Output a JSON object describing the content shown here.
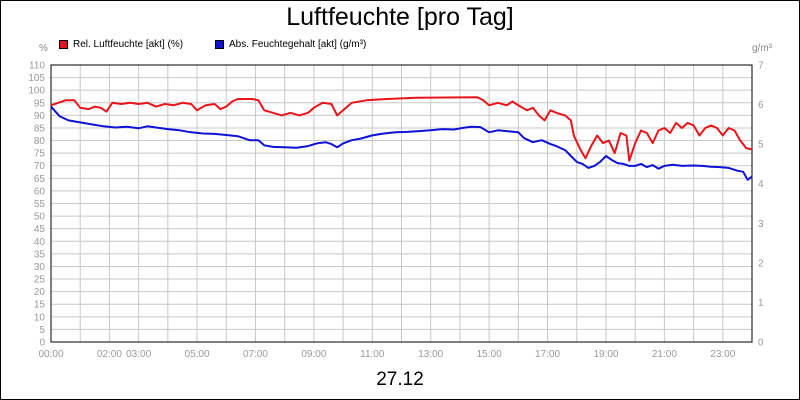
{
  "chart_data": {
    "type": "line",
    "title": "Luftfeuchte [pro Tag]",
    "date_label": "27.12",
    "y_left_unit": "%",
    "y_right_unit": "g/m³",
    "y_left_ticks": [
      "0",
      "5",
      "10",
      "15",
      "20",
      "25",
      "30",
      "35",
      "40",
      "45",
      "50",
      "55",
      "60",
      "65",
      "70",
      "75",
      "80",
      "85",
      "90",
      "95",
      "100",
      "105",
      "110"
    ],
    "y_right_ticks": [
      "0",
      "1",
      "2",
      "3",
      "4",
      "5",
      "6",
      "7"
    ],
    "x_ticks": [
      "00:00",
      "02:00",
      "03:00",
      "05:00",
      "07:00",
      "09:00",
      "11:00",
      "13:00",
      "15:00",
      "17:00",
      "19:00",
      "21:00",
      "23:00"
    ],
    "ylim_left": [
      0,
      110
    ],
    "ylim_right": [
      0,
      7
    ],
    "xlim_hours": [
      0,
      24
    ],
    "grid": true,
    "legend_position": "top-left",
    "series": [
      {
        "name": "Rel. Luftfeuchte [akt] (%)",
        "color": "#e8141b",
        "axis": "left",
        "points": [
          [
            0.0,
            94
          ],
          [
            0.5,
            96
          ],
          [
            0.8,
            96
          ],
          [
            1.0,
            93
          ],
          [
            1.3,
            92.5
          ],
          [
            1.5,
            93.5
          ],
          [
            1.7,
            93
          ],
          [
            1.9,
            91.5
          ],
          [
            2.1,
            95
          ],
          [
            2.4,
            94.5
          ],
          [
            2.7,
            95
          ],
          [
            3.0,
            94.5
          ],
          [
            3.3,
            95
          ],
          [
            3.6,
            93.5
          ],
          [
            3.9,
            94.5
          ],
          [
            4.2,
            94
          ],
          [
            4.5,
            95
          ],
          [
            4.8,
            94.5
          ],
          [
            5.0,
            92
          ],
          [
            5.3,
            94
          ],
          [
            5.6,
            94.5
          ],
          [
            5.8,
            92.5
          ],
          [
            6.0,
            93.5
          ],
          [
            6.2,
            95.5
          ],
          [
            6.4,
            96.5
          ],
          [
            6.9,
            96.5
          ],
          [
            7.1,
            96
          ],
          [
            7.3,
            92
          ],
          [
            7.6,
            91
          ],
          [
            7.9,
            90
          ],
          [
            8.2,
            91
          ],
          [
            8.5,
            90
          ],
          [
            8.8,
            91
          ],
          [
            9.0,
            93
          ],
          [
            9.3,
            95
          ],
          [
            9.6,
            94.5
          ],
          [
            9.8,
            90
          ],
          [
            10.0,
            92
          ],
          [
            10.3,
            95
          ],
          [
            10.8,
            96
          ],
          [
            11.5,
            96.5
          ],
          [
            12.5,
            97
          ],
          [
            14.6,
            97.2
          ],
          [
            14.8,
            96
          ],
          [
            15.0,
            94
          ],
          [
            15.3,
            95
          ],
          [
            15.6,
            94
          ],
          [
            15.8,
            95.5
          ],
          [
            16.0,
            94
          ],
          [
            16.3,
            92
          ],
          [
            16.5,
            93
          ],
          [
            16.7,
            90
          ],
          [
            16.9,
            88
          ],
          [
            17.1,
            92
          ],
          [
            17.3,
            91
          ],
          [
            17.6,
            90
          ],
          [
            17.8,
            88
          ],
          [
            17.9,
            82
          ],
          [
            18.1,
            77
          ],
          [
            18.3,
            73
          ],
          [
            18.5,
            78
          ],
          [
            18.7,
            82
          ],
          [
            18.9,
            79
          ],
          [
            19.1,
            80
          ],
          [
            19.3,
            75
          ],
          [
            19.5,
            83
          ],
          [
            19.7,
            82
          ],
          [
            19.8,
            72
          ],
          [
            20.0,
            79
          ],
          [
            20.2,
            84
          ],
          [
            20.4,
            83
          ],
          [
            20.6,
            79
          ],
          [
            20.8,
            84
          ],
          [
            21.0,
            85
          ],
          [
            21.2,
            83
          ],
          [
            21.4,
            87
          ],
          [
            21.6,
            85
          ],
          [
            21.8,
            87
          ],
          [
            22.0,
            86
          ],
          [
            22.2,
            82
          ],
          [
            22.4,
            85
          ],
          [
            22.6,
            86
          ],
          [
            22.8,
            85
          ],
          [
            23.0,
            82
          ],
          [
            23.2,
            85
          ],
          [
            23.4,
            84
          ],
          [
            23.6,
            80
          ],
          [
            23.8,
            77
          ],
          [
            24.0,
            76.5
          ]
        ]
      },
      {
        "name": "Abs. Feuchtegehalt [akt] (g/m³)",
        "color": "#0f12d4",
        "axis": "right",
        "points": [
          [
            0.0,
            5.95
          ],
          [
            0.3,
            5.7
          ],
          [
            0.6,
            5.6
          ],
          [
            1.0,
            5.55
          ],
          [
            1.4,
            5.5
          ],
          [
            1.8,
            5.45
          ],
          [
            2.2,
            5.42
          ],
          [
            2.6,
            5.44
          ],
          [
            3.0,
            5.4
          ],
          [
            3.3,
            5.45
          ],
          [
            3.6,
            5.42
          ],
          [
            4.0,
            5.38
          ],
          [
            4.4,
            5.35
          ],
          [
            4.8,
            5.3
          ],
          [
            5.2,
            5.27
          ],
          [
            5.6,
            5.26
          ],
          [
            6.0,
            5.23
          ],
          [
            6.4,
            5.2
          ],
          [
            6.8,
            5.1
          ],
          [
            7.1,
            5.1
          ],
          [
            7.3,
            4.97
          ],
          [
            7.6,
            4.93
          ],
          [
            8.0,
            4.92
          ],
          [
            8.4,
            4.91
          ],
          [
            8.8,
            4.95
          ],
          [
            9.1,
            5.02
          ],
          [
            9.4,
            5.05
          ],
          [
            9.6,
            5.0
          ],
          [
            9.8,
            4.92
          ],
          [
            10.0,
            5.02
          ],
          [
            10.3,
            5.1
          ],
          [
            10.6,
            5.14
          ],
          [
            11.0,
            5.22
          ],
          [
            11.4,
            5.27
          ],
          [
            11.8,
            5.3
          ],
          [
            12.2,
            5.31
          ],
          [
            12.6,
            5.33
          ],
          [
            13.0,
            5.35
          ],
          [
            13.4,
            5.38
          ],
          [
            13.8,
            5.37
          ],
          [
            14.1,
            5.41
          ],
          [
            14.4,
            5.44
          ],
          [
            14.7,
            5.43
          ],
          [
            15.0,
            5.3
          ],
          [
            15.3,
            5.35
          ],
          [
            15.6,
            5.33
          ],
          [
            16.0,
            5.3
          ],
          [
            16.2,
            5.15
          ],
          [
            16.5,
            5.05
          ],
          [
            16.8,
            5.1
          ],
          [
            17.1,
            5.0
          ],
          [
            17.3,
            4.95
          ],
          [
            17.6,
            4.85
          ],
          [
            17.8,
            4.7
          ],
          [
            18.0,
            4.55
          ],
          [
            18.2,
            4.5
          ],
          [
            18.4,
            4.4
          ],
          [
            18.6,
            4.45
          ],
          [
            18.8,
            4.55
          ],
          [
            19.0,
            4.7
          ],
          [
            19.2,
            4.6
          ],
          [
            19.4,
            4.52
          ],
          [
            19.6,
            4.5
          ],
          [
            19.8,
            4.45
          ],
          [
            20.0,
            4.45
          ],
          [
            20.2,
            4.5
          ],
          [
            20.4,
            4.42
          ],
          [
            20.6,
            4.47
          ],
          [
            20.8,
            4.38
          ],
          [
            21.0,
            4.45
          ],
          [
            21.3,
            4.48
          ],
          [
            21.6,
            4.45
          ],
          [
            22.0,
            4.46
          ],
          [
            22.3,
            4.45
          ],
          [
            22.6,
            4.43
          ],
          [
            22.9,
            4.42
          ],
          [
            23.2,
            4.4
          ],
          [
            23.5,
            4.33
          ],
          [
            23.7,
            4.3
          ],
          [
            23.85,
            4.1
          ],
          [
            24.0,
            4.18
          ]
        ]
      }
    ]
  }
}
